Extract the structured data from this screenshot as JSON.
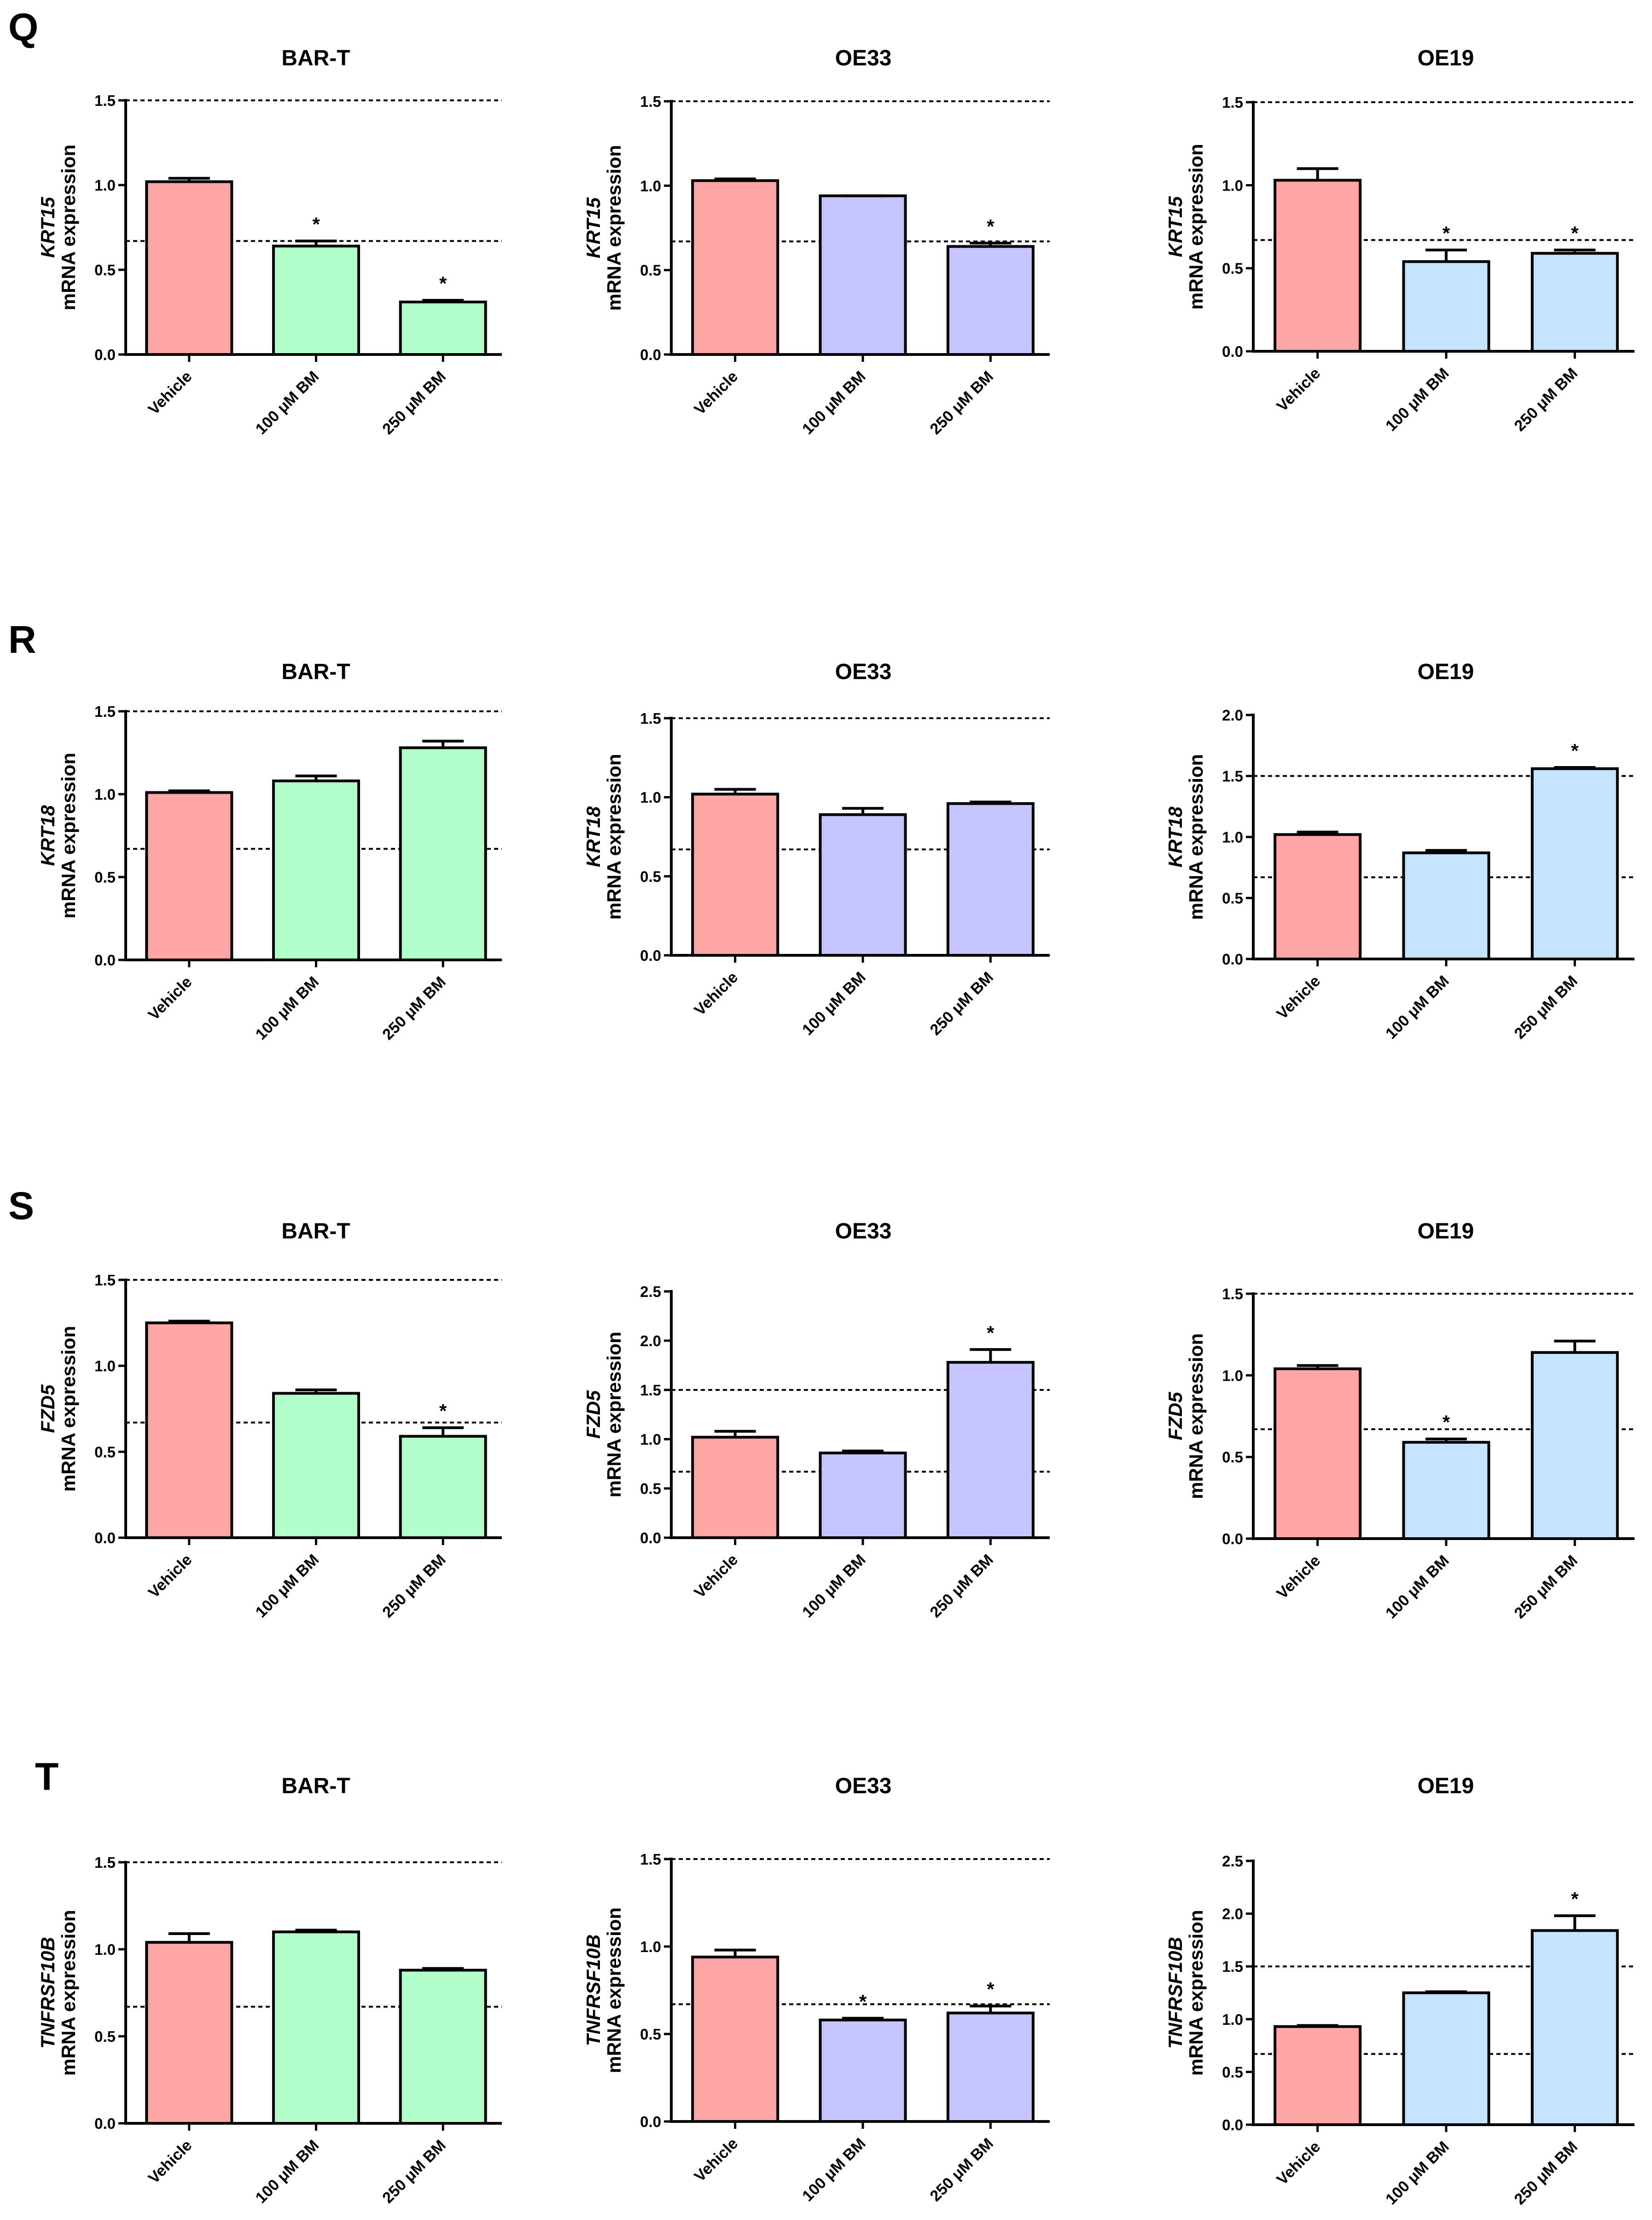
{
  "colors": {
    "vehicle": "#ffa5a5",
    "bart": "#b1ffc9",
    "oe33": "#c4c4ff",
    "oe19": "#c4e3ff",
    "stroke": "#000000"
  },
  "y_axis_suffix": "mRNA expression",
  "panels": [
    {
      "letter": "Q",
      "gene": "KRT15"
    },
    {
      "letter": "R",
      "gene": "KRT18"
    },
    {
      "letter": "S",
      "gene": "FZD5"
    },
    {
      "letter": "T",
      "gene": "TNFRSF10B"
    }
  ],
  "chart_data": [
    {
      "type": "bar",
      "panel": "Q",
      "cell_line": "BAR-T",
      "title": "BAR-T",
      "ylabel_gene": "KRT15",
      "ylabel": "mRNA expression",
      "categories": [
        "Vehicle",
        "100 μM BM",
        "250 μM BM"
      ],
      "values": [
        1.02,
        0.64,
        0.31
      ],
      "errors": [
        0.02,
        0.03,
        0.01
      ],
      "significant": [
        false,
        true,
        true
      ],
      "ylim": [
        0,
        1.5
      ],
      "yticks": [
        "0.0",
        "0.5",
        "1.0",
        "1.5"
      ],
      "reference_lines": [
        1.5,
        0.67
      ]
    },
    {
      "type": "bar",
      "panel": "Q",
      "cell_line": "OE33",
      "title": "OE33",
      "ylabel_gene": "KRT15",
      "ylabel": "mRNA expression",
      "categories": [
        "Vehicle",
        "100 μM BM",
        "250 μM BM"
      ],
      "values": [
        1.03,
        0.94,
        0.64
      ],
      "errors": [
        0.01,
        0.0,
        0.02
      ],
      "significant": [
        false,
        false,
        true
      ],
      "ylim": [
        0,
        1.5
      ],
      "yticks": [
        "0.0",
        "0.5",
        "1.0",
        "1.5"
      ],
      "reference_lines": [
        1.5,
        0.67
      ]
    },
    {
      "type": "bar",
      "panel": "Q",
      "cell_line": "OE19",
      "title": "OE19",
      "ylabel_gene": "KRT15",
      "ylabel": "mRNA expression",
      "categories": [
        "Vehicle",
        "100 μM BM",
        "250 μM BM"
      ],
      "values": [
        1.03,
        0.54,
        0.59
      ],
      "errors": [
        0.07,
        0.07,
        0.02
      ],
      "significant": [
        false,
        true,
        true
      ],
      "ylim": [
        0,
        1.5
      ],
      "yticks": [
        "0.0",
        "0.5",
        "1.0",
        "1.5"
      ],
      "reference_lines": [
        1.5,
        0.67
      ]
    },
    {
      "type": "bar",
      "panel": "R",
      "cell_line": "BAR-T",
      "title": "BAR-T",
      "ylabel_gene": "KRT18",
      "ylabel": "mRNA expression",
      "categories": [
        "Vehicle",
        "100 μM BM",
        "250 μM BM"
      ],
      "values": [
        1.01,
        1.08,
        1.28
      ],
      "errors": [
        0.01,
        0.03,
        0.04
      ],
      "significant": [
        false,
        false,
        false
      ],
      "ylim": [
        0,
        1.5
      ],
      "yticks": [
        "0.0",
        "0.5",
        "1.0",
        "1.5"
      ],
      "reference_lines": [
        1.5,
        0.67
      ]
    },
    {
      "type": "bar",
      "panel": "R",
      "cell_line": "OE33",
      "title": "OE33",
      "ylabel_gene": "KRT18",
      "ylabel": "mRNA expression",
      "categories": [
        "Vehicle",
        "100 μM BM",
        "250 μM BM"
      ],
      "values": [
        1.02,
        0.89,
        0.96
      ],
      "errors": [
        0.03,
        0.04,
        0.01
      ],
      "significant": [
        false,
        false,
        false
      ],
      "ylim": [
        0,
        1.5
      ],
      "yticks": [
        "0.0",
        "0.5",
        "1.0",
        "1.5"
      ],
      "reference_lines": [
        1.5,
        0.67
      ]
    },
    {
      "type": "bar",
      "panel": "R",
      "cell_line": "OE19",
      "title": "OE19",
      "ylabel_gene": "KRT18",
      "ylabel": "mRNA expression",
      "categories": [
        "Vehicle",
        "100 μM BM",
        "250 μM BM"
      ],
      "values": [
        1.02,
        0.87,
        1.56
      ],
      "errors": [
        0.02,
        0.02,
        0.01
      ],
      "significant": [
        false,
        false,
        true
      ],
      "ylim": [
        0,
        2.0
      ],
      "yticks": [
        "0.0",
        "0.5",
        "1.0",
        "1.5",
        "2.0"
      ],
      "reference_lines": [
        1.5,
        0.67
      ]
    },
    {
      "type": "bar",
      "panel": "S",
      "cell_line": "BAR-T",
      "title": "BAR-T",
      "ylabel_gene": "FZD5",
      "ylabel": "mRNA expression",
      "categories": [
        "Vehicle",
        "100 μM BM",
        "250 μM BM"
      ],
      "values": [
        1.25,
        0.84,
        0.59
      ],
      "errors": [
        0.01,
        0.02,
        0.05
      ],
      "significant": [
        false,
        false,
        true
      ],
      "ylim": [
        0,
        1.5
      ],
      "yticks": [
        "0.0",
        "0.5",
        "1.0",
        "1.5"
      ],
      "reference_lines": [
        1.5,
        0.67
      ]
    },
    {
      "type": "bar",
      "panel": "S",
      "cell_line": "OE33",
      "title": "OE33",
      "ylabel_gene": "FZD5",
      "ylabel": "mRNA expression",
      "categories": [
        "Vehicle",
        "100 μM BM",
        "250 μM BM"
      ],
      "values": [
        1.02,
        0.86,
        1.78
      ],
      "errors": [
        0.06,
        0.02,
        0.13
      ],
      "significant": [
        false,
        false,
        true
      ],
      "ylim": [
        0,
        2.5
      ],
      "yticks": [
        "0.0",
        "0.5",
        "1.0",
        "1.5",
        "2.0",
        "2.5"
      ],
      "reference_lines": [
        1.5,
        0.67
      ]
    },
    {
      "type": "bar",
      "panel": "S",
      "cell_line": "OE19",
      "title": "OE19",
      "ylabel_gene": "FZD5",
      "ylabel": "mRNA expression",
      "categories": [
        "Vehicle",
        "100 μM BM",
        "250 μM BM"
      ],
      "values": [
        1.04,
        0.59,
        1.14
      ],
      "errors": [
        0.02,
        0.02,
        0.07
      ],
      "significant": [
        false,
        true,
        false
      ],
      "ylim": [
        0,
        1.5
      ],
      "yticks": [
        "0.0",
        "0.5",
        "1.0",
        "1.5"
      ],
      "reference_lines": [
        1.5,
        0.67
      ]
    },
    {
      "type": "bar",
      "panel": "T",
      "cell_line": "BAR-T",
      "title": "BAR-T",
      "ylabel_gene": "TNFRSF10B",
      "ylabel": "mRNA expression",
      "categories": [
        "Vehicle",
        "100 μM BM",
        "250 μM BM"
      ],
      "values": [
        1.04,
        1.1,
        0.88
      ],
      "errors": [
        0.05,
        0.01,
        0.01
      ],
      "significant": [
        false,
        false,
        false
      ],
      "ylim": [
        0,
        1.5
      ],
      "yticks": [
        "0.0",
        "0.5",
        "1.0",
        "1.5"
      ],
      "reference_lines": [
        1.5,
        0.67
      ]
    },
    {
      "type": "bar",
      "panel": "T",
      "cell_line": "OE33",
      "title": "OE33",
      "ylabel_gene": "TNFRSF10B",
      "ylabel": "mRNA expression",
      "categories": [
        "Vehicle",
        "100 μM BM",
        "250 μM BM"
      ],
      "values": [
        0.94,
        0.58,
        0.62
      ],
      "errors": [
        0.04,
        0.01,
        0.04
      ],
      "significant": [
        false,
        true,
        true
      ],
      "ylim": [
        0,
        1.5
      ],
      "yticks": [
        "0.0",
        "0.5",
        "1.0",
        "1.5"
      ],
      "reference_lines": [
        1.5,
        0.67
      ]
    },
    {
      "type": "bar",
      "panel": "T",
      "cell_line": "OE19",
      "title": "OE19",
      "ylabel_gene": "TNFRSF10B",
      "ylabel": "mRNA expression",
      "categories": [
        "Vehicle",
        "100 μM BM",
        "250 μM BM"
      ],
      "values": [
        0.93,
        1.25,
        1.84
      ],
      "errors": [
        0.01,
        0.01,
        0.14
      ],
      "significant": [
        false,
        false,
        true
      ],
      "ylim": [
        0,
        2.5
      ],
      "yticks": [
        "0.0",
        "0.5",
        "1.0",
        "1.5",
        "2.0",
        "2.5"
      ],
      "reference_lines": [
        1.5,
        0.67
      ]
    }
  ]
}
